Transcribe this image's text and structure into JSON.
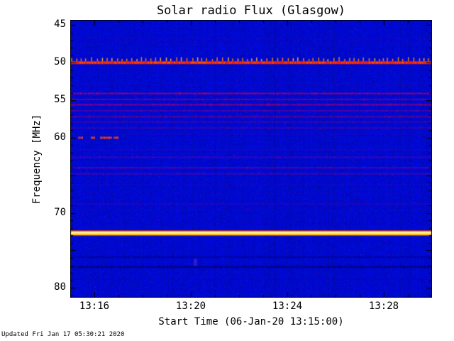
{
  "figure": {
    "title": "Solar radio Flux (Glasgow)",
    "y_axis_label": "Frequency [MHz]",
    "x_axis_label": "Start Time (06-Jan-20 13:15:00)",
    "footer": "Updated Fri Jan 17 05:30:21 2020"
  },
  "chart_data": {
    "type": "heatmap",
    "subtype": "radio-spectrogram",
    "title": "Solar radio Flux (Glasgow)",
    "xlabel": "Start Time (06-Jan-20 13:15:00)",
    "ylabel": "Frequency [MHz]",
    "y_tick_labels": [
      45,
      50,
      55,
      60,
      70,
      80
    ],
    "x_tick_labels": [
      "13:16",
      "13:20",
      "13:24",
      "13:28"
    ],
    "time_range": [
      "13:15:00",
      "13:30:00"
    ],
    "freq_range_mhz": [
      44.3,
      81.3
    ],
    "y_axis_inverted": true,
    "grid": false,
    "background": "#0208cd",
    "axis_color": "#000000",
    "features": {
      "calibration_line": {
        "freq_mhz": 50.0,
        "color": "#ff2200",
        "bright_color": "#ff6600",
        "spike_color": "#ff8800",
        "spike_bright_color": "#ffbb33",
        "description": "strong red RFI line with periodic spikes above"
      },
      "bright_line": {
        "freq_mhz": 72.7,
        "core_color": "#ffe34d",
        "edge_color": "#ff9900",
        "glow_color": "#dd4400",
        "center_color": "#ffffcc"
      },
      "burst": {
        "freq_mhz": 60.0,
        "color": "#ff4400",
        "dashes": [
          [
            0.022,
            0.035
          ],
          [
            0.056,
            0.067
          ],
          [
            0.082,
            0.115
          ],
          [
            0.12,
            0.132
          ]
        ]
      },
      "rfi_lines": [
        {
          "freq_mhz": 46.8,
          "color": "#4b00b0",
          "alpha": 0.3,
          "width": 1
        },
        {
          "freq_mhz": 47.6,
          "color": "#4b00b0",
          "alpha": 0.25,
          "width": 1
        },
        {
          "freq_mhz": 51.2,
          "color": "#4400aa",
          "alpha": 0.22,
          "width": 1
        },
        {
          "freq_mhz": 52.9,
          "color": "#6600a0",
          "alpha": 0.25,
          "width": 1
        },
        {
          "freq_mhz": 54.1,
          "color": "#c8005a",
          "alpha": 0.8,
          "width": 2
        },
        {
          "freq_mhz": 54.9,
          "color": "#a80070",
          "alpha": 0.65,
          "width": 2
        },
        {
          "freq_mhz": 55.6,
          "color": "#c8005a",
          "alpha": 0.75,
          "width": 2
        },
        {
          "freq_mhz": 56.4,
          "color": "#980078",
          "alpha": 0.55,
          "width": 2
        },
        {
          "freq_mhz": 57.2,
          "color": "#a80064",
          "alpha": 0.6,
          "width": 2
        },
        {
          "freq_mhz": 57.9,
          "color": "#880088",
          "alpha": 0.45,
          "width": 2
        },
        {
          "freq_mhz": 58.7,
          "color": "#880088",
          "alpha": 0.45,
          "width": 2
        },
        {
          "freq_mhz": 59.5,
          "color": "#6600aa",
          "alpha": 0.35,
          "width": 1
        },
        {
          "freq_mhz": 61.6,
          "color": "#7700aa",
          "alpha": 0.4,
          "width": 1
        },
        {
          "freq_mhz": 62.6,
          "color": "#8800a6",
          "alpha": 0.45,
          "width": 2
        },
        {
          "freq_mhz": 64.0,
          "color": "#a8008a",
          "alpha": 0.5,
          "width": 2
        },
        {
          "freq_mhz": 64.8,
          "color": "#98008a",
          "alpha": 0.45,
          "width": 2
        },
        {
          "freq_mhz": 66.2,
          "color": "#5500bb",
          "alpha": 0.3,
          "width": 1
        },
        {
          "freq_mhz": 67.4,
          "color": "#5500bb",
          "alpha": 0.25,
          "width": 1
        },
        {
          "freq_mhz": 68.8,
          "color": "#660099",
          "alpha": 0.35,
          "width": 2
        },
        {
          "freq_mhz": 69.6,
          "color": "#660099",
          "alpha": 0.3,
          "width": 1
        },
        {
          "freq_mhz": 71.0,
          "color": "#4400bb",
          "alpha": 0.22,
          "width": 1
        },
        {
          "freq_mhz": 75.9,
          "color": "#000060",
          "alpha": 0.45,
          "width": 2
        },
        {
          "freq_mhz": 77.2,
          "color": "#000050",
          "alpha": 0.55,
          "width": 3
        },
        {
          "freq_mhz": 78.8,
          "color": "#1a0080",
          "alpha": 0.25,
          "width": 1
        }
      ],
      "vertical_streaks": [
        {
          "time_frac": 0.565,
          "alpha": 0.14
        },
        {
          "time_frac": 0.61,
          "alpha": 0.07
        },
        {
          "time_frac": 0.4,
          "alpha": 0.06
        },
        {
          "time_frac": 0.935,
          "alpha": 0.06
        }
      ],
      "blobs": [
        {
          "time_frac": 0.345,
          "freq_mhz": 76.6,
          "color": "#7744dd",
          "alpha": 0.35
        }
      ]
    }
  }
}
